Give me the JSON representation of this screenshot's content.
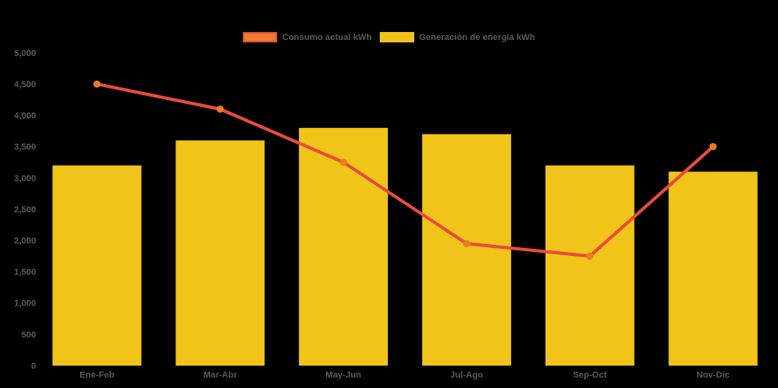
{
  "colors": {
    "background": "#000000",
    "text": "#595959",
    "bar_yellow": "#F0C419",
    "line_red": "#E74C3C",
    "marker_orange": "#E67E22",
    "legend_consumo_fill": "#ED7D31",
    "legend_consumo_border": "#E74C3C"
  },
  "chart_data": {
    "type": "combo",
    "title": "",
    "xlabel": "",
    "ylabel": "",
    "categories": [
      "Ene-Feb",
      "Mar-Abr",
      "May-Jun",
      "Jul-Ago",
      "Sep-Oct",
      "Nov-Dic"
    ],
    "series": [
      {
        "name": "Generación de energía kWh",
        "type": "bar",
        "color": "#F0C419",
        "values": [
          3200,
          3600,
          3800,
          3700,
          3200,
          3100
        ],
        "legend_swatch": {
          "fill": "#F0C419",
          "border": "#F0C419"
        }
      },
      {
        "name": "Consumo actual kWh",
        "type": "line",
        "color": "#E74C3C",
        "marker_color": "#E67E22",
        "values": [
          4500,
          4100,
          3250,
          1950,
          1750,
          3500
        ],
        "legend_swatch": {
          "fill": "#ED7D31",
          "border": "#E74C3C"
        }
      }
    ],
    "legend_order": [
      "Consumo actual kWh",
      "Generación de energía kWh"
    ],
    "legend_position": "top",
    "grid": false,
    "ylim": [
      0,
      5000
    ],
    "ytick_step": 500,
    "ytick_labels": [
      "0",
      "500",
      "1,000",
      "1,500",
      "2,000",
      "2,500",
      "3,000",
      "3,500",
      "4,000",
      "4,500",
      "5,000"
    ]
  }
}
